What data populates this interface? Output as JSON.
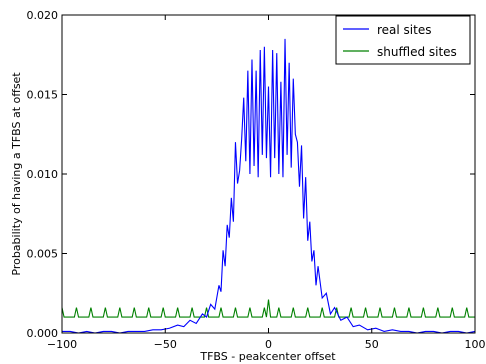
{
  "chart_data": {
    "type": "line",
    "title": "",
    "xlabel": "TFBS - peakcenter offset",
    "ylabel": "Probability of having a TFBS at offset",
    "xlim": [
      -100,
      100
    ],
    "ylim": [
      0.0,
      0.02
    ],
    "x_ticks": [
      "−100",
      "−50",
      "0",
      "50",
      "100"
    ],
    "y_ticks": [
      "0.000",
      "0.005",
      "0.010",
      "0.015",
      "0.020"
    ],
    "legend_position": "top-right",
    "grid": false,
    "series": [
      {
        "name": "real sites",
        "color": "#0000ff",
        "points": [
          [
            -100,
            0.0001
          ],
          [
            -96,
            0.0001
          ],
          [
            -92,
            0.0
          ],
          [
            -88,
            0.0001
          ],
          [
            -84,
            0.0
          ],
          [
            -80,
            0.0001
          ],
          [
            -76,
            0.0001
          ],
          [
            -72,
            0.0
          ],
          [
            -68,
            0.0001
          ],
          [
            -64,
            0.0001
          ],
          [
            -60,
            0.0001
          ],
          [
            -56,
            0.0002
          ],
          [
            -52,
            0.0002
          ],
          [
            -48,
            0.0003
          ],
          [
            -44,
            0.0005
          ],
          [
            -41,
            0.0004
          ],
          [
            -38,
            0.0008
          ],
          [
            -35,
            0.0006
          ],
          [
            -32,
            0.0012
          ],
          [
            -30,
            0.001
          ],
          [
            -28,
            0.0018
          ],
          [
            -26,
            0.0015
          ],
          [
            -24,
            0.003
          ],
          [
            -23,
            0.0026
          ],
          [
            -22,
            0.0052
          ],
          [
            -21,
            0.0042
          ],
          [
            -20,
            0.0068
          ],
          [
            -19,
            0.006
          ],
          [
            -18,
            0.0085
          ],
          [
            -17,
            0.007
          ],
          [
            -16,
            0.012
          ],
          [
            -15,
            0.0094
          ],
          [
            -14,
            0.0102
          ],
          [
            -13,
            0.0122
          ],
          [
            -12,
            0.0148
          ],
          [
            -11,
            0.0108
          ],
          [
            -10,
            0.0165
          ],
          [
            -9,
            0.01
          ],
          [
            -8,
            0.0172
          ],
          [
            -7,
            0.0105
          ],
          [
            -6,
            0.0165
          ],
          [
            -5,
            0.0098
          ],
          [
            -4,
            0.0178
          ],
          [
            -3,
            0.0112
          ],
          [
            -2,
            0.018
          ],
          [
            -1,
            0.011
          ],
          [
            0,
            0.0155
          ],
          [
            1,
            0.0098
          ],
          [
            2,
            0.0178
          ],
          [
            3,
            0.011
          ],
          [
            4,
            0.0176
          ],
          [
            5,
            0.01
          ],
          [
            6,
            0.0158
          ],
          [
            7,
            0.0098
          ],
          [
            8,
            0.0185
          ],
          [
            9,
            0.0112
          ],
          [
            10,
            0.017
          ],
          [
            11,
            0.0104
          ],
          [
            12,
            0.016
          ],
          [
            13,
            0.0125
          ],
          [
            14,
            0.012
          ],
          [
            15,
            0.0092
          ],
          [
            16,
            0.0118
          ],
          [
            17,
            0.0072
          ],
          [
            18,
            0.0098
          ],
          [
            19,
            0.0058
          ],
          [
            20,
            0.007
          ],
          [
            21,
            0.0045
          ],
          [
            22,
            0.0052
          ],
          [
            23,
            0.003
          ],
          [
            24,
            0.0042
          ],
          [
            26,
            0.0022
          ],
          [
            28,
            0.0025
          ],
          [
            30,
            0.0012
          ],
          [
            32,
            0.0016
          ],
          [
            35,
            0.0008
          ],
          [
            38,
            0.001
          ],
          [
            41,
            0.0004
          ],
          [
            44,
            0.0005
          ],
          [
            48,
            0.0002
          ],
          [
            52,
            0.0003
          ],
          [
            56,
            0.0001
          ],
          [
            60,
            0.0002
          ],
          [
            64,
            0.0001
          ],
          [
            68,
            0.0001
          ],
          [
            72,
            0.0
          ],
          [
            76,
            0.0001
          ],
          [
            80,
            0.0001
          ],
          [
            84,
            0.0
          ],
          [
            88,
            0.0001
          ],
          [
            92,
            0.0001
          ],
          [
            96,
            0.0
          ],
          [
            100,
            0.0001
          ]
        ]
      },
      {
        "name": "shuffled sites",
        "color": "#008000",
        "baseline": 0.001,
        "spike_period": 7,
        "spike_value": 0.0016,
        "spike_value_center": 0.0021
      }
    ]
  }
}
